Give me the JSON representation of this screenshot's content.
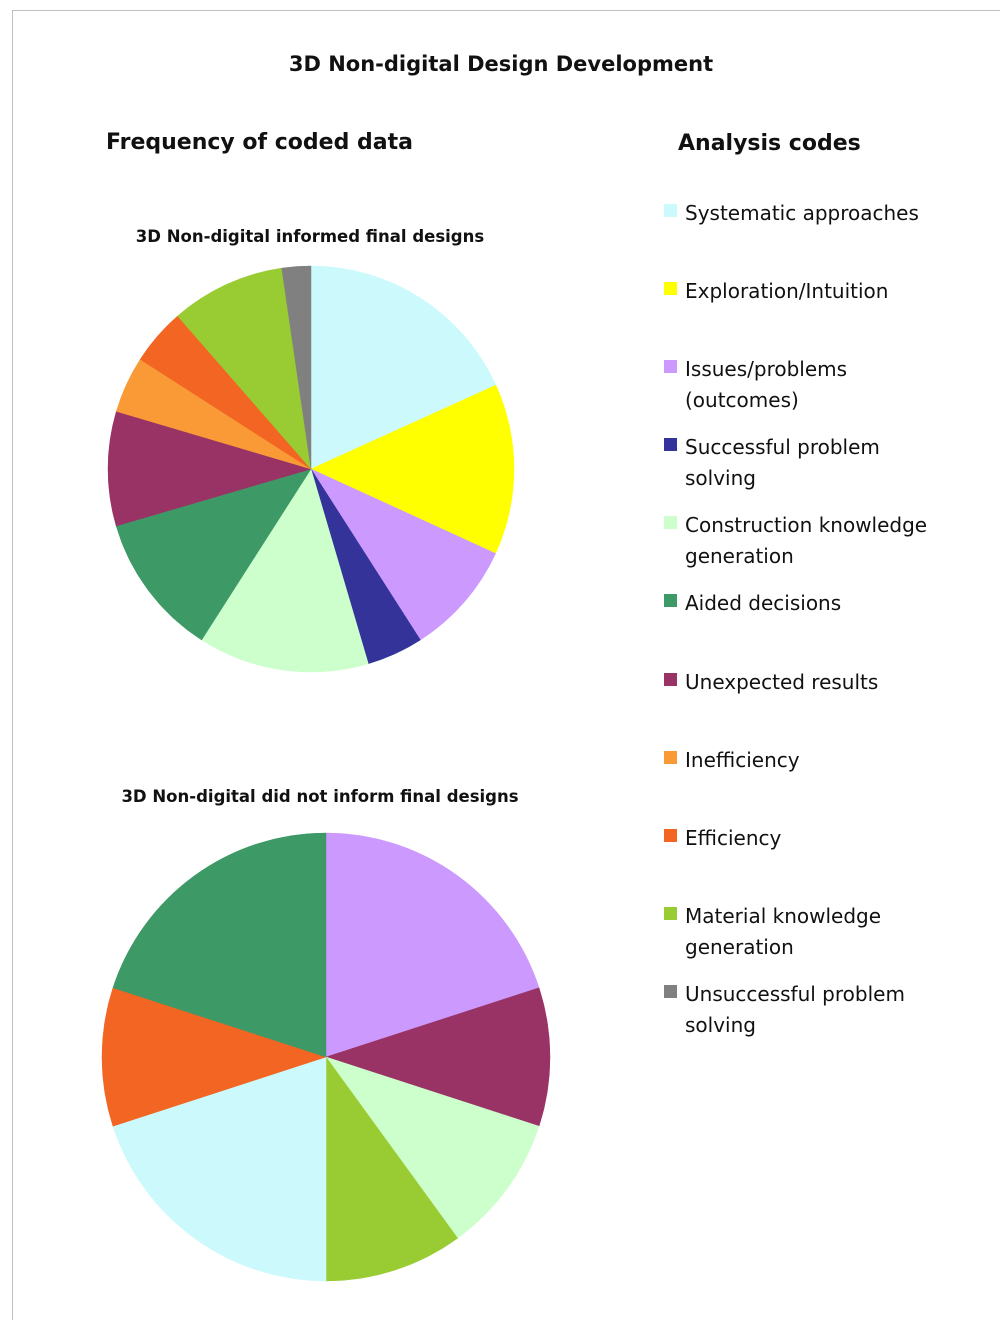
{
  "title": "3D Non-digital Design Development",
  "left_heading": "Frequency of coded data",
  "legend_heading": "Analysis codes",
  "chart_data": [
    {
      "type": "pie",
      "title": "3D Non-digital informed final designs",
      "start": "12 o'clock, clockwise",
      "slices": [
        {
          "label": "Systematic approaches",
          "value": 17.4,
          "color": "#ccfafc"
        },
        {
          "label": "Exploration/Intuition",
          "value": 13.0,
          "color": "#ffff00"
        },
        {
          "label": "Issues/problems (outcomes)",
          "value": 8.7,
          "color": "#cc99ff"
        },
        {
          "label": "Successful problem solving",
          "value": 4.3,
          "color": "#333399"
        },
        {
          "label": "Construction knowledge generation",
          "value": 13.0,
          "color": "#ccffcc"
        },
        {
          "label": "Aided decisions",
          "value": 10.9,
          "color": "#3d9966"
        },
        {
          "label": "Unexpected results",
          "value": 8.7,
          "color": "#993366"
        },
        {
          "label": "Inefficiency",
          "value": 4.3,
          "color": "#f99a36"
        },
        {
          "label": "Efficiency",
          "value": 4.3,
          "color": "#f26522"
        },
        {
          "label": "Material knowledge generation",
          "value": 8.7,
          "color": "#99cc33"
        },
        {
          "label": "Unsuccessful problem solving",
          "value": 2.2,
          "color": "#808080"
        }
      ]
    },
    {
      "type": "pie",
      "title": "3D Non-digital did not inform final designs",
      "start": "12 o'clock, clockwise",
      "slices": [
        {
          "label": "Issues/problems (outcomes)",
          "value": 20,
          "color": "#cc99ff"
        },
        {
          "label": "Unexpected results",
          "value": 10,
          "color": "#993366"
        },
        {
          "label": "Construction knowledge generation",
          "value": 10,
          "color": "#ccffcc"
        },
        {
          "label": "Material knowledge generation",
          "value": 10,
          "color": "#99cc33"
        },
        {
          "label": "Systematic approaches",
          "value": 20,
          "color": "#ccfafc"
        },
        {
          "label": "Efficiency",
          "value": 10,
          "color": "#f26522"
        },
        {
          "label": "Aided decisions",
          "value": 20,
          "color": "#3d9966"
        }
      ]
    }
  ],
  "legend": [
    {
      "lines": [
        "Systematic approaches"
      ],
      "color": "#ccfafc"
    },
    {
      "lines": [
        "Exploration/Intuition"
      ],
      "color": "#ffff00"
    },
    {
      "lines": [
        "Issues/problems",
        "(outcomes)"
      ],
      "color": "#cc99ff"
    },
    {
      "lines": [
        "Successful problem",
        "solving"
      ],
      "color": "#333399"
    },
    {
      "lines": [
        "Construction knowledge",
        "generation"
      ],
      "color": "#ccffcc"
    },
    {
      "lines": [
        "Aided decisions"
      ],
      "color": "#3d9966"
    },
    {
      "lines": [
        "Unexpected results"
      ],
      "color": "#993366"
    },
    {
      "lines": [
        "Inefficiency"
      ],
      "color": "#f99a36"
    },
    {
      "lines": [
        "Efficiency"
      ],
      "color": "#f26522"
    },
    {
      "lines": [
        "Material knowledge",
        "generation"
      ],
      "color": "#99cc33"
    },
    {
      "lines": [
        "Unsuccessful problem",
        "solving"
      ],
      "color": "#808080"
    }
  ]
}
